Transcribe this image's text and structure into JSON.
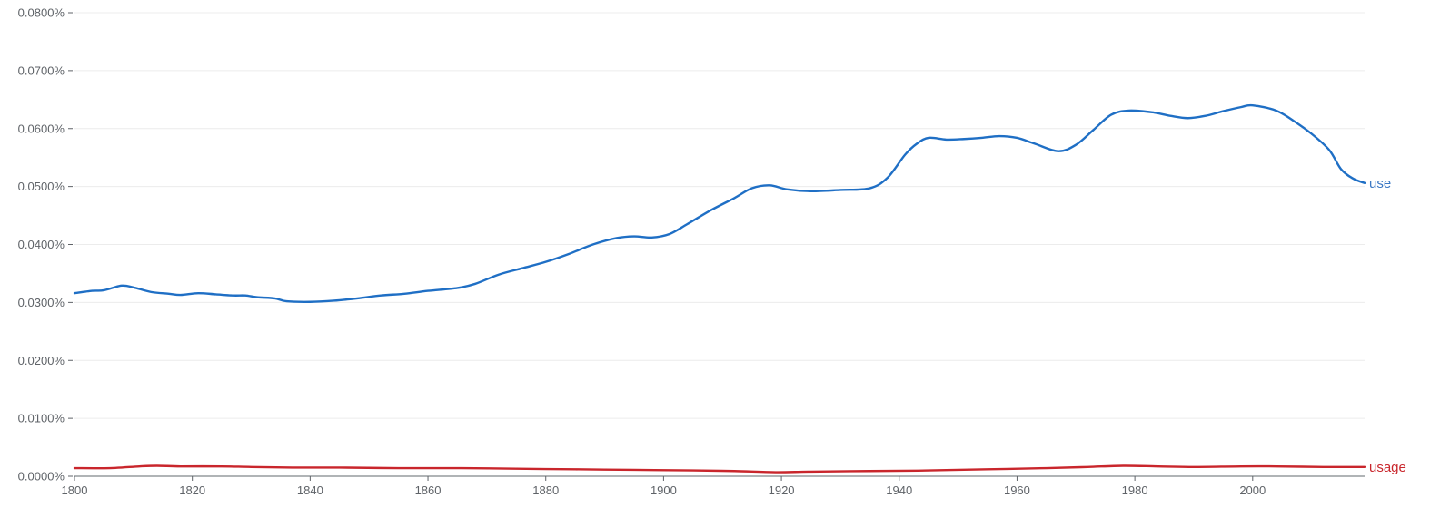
{
  "chart_data": {
    "type": "line",
    "title": "",
    "xlabel": "",
    "ylabel": "",
    "xlim": [
      1800,
      2019
    ],
    "ylim": [
      0,
      0.08
    ],
    "grid": true,
    "legend": "inline-right",
    "x_ticks": [
      1800,
      1820,
      1840,
      1860,
      1880,
      1900,
      1920,
      1940,
      1960,
      1980,
      2000
    ],
    "x_tick_labels": [
      "1800",
      "1820",
      "1840",
      "1860",
      "1880",
      "1900",
      "1920",
      "1940",
      "1960",
      "1980",
      "2000"
    ],
    "y_ticks": [
      0,
      0.01,
      0.02,
      0.03,
      0.04,
      0.05,
      0.06,
      0.07,
      0.08
    ],
    "y_tick_labels": [
      "0.0000%",
      "0.0100%",
      "0.0200%",
      "0.0300%",
      "0.0400%",
      "0.0500%",
      "0.0600%",
      "0.0700%",
      "0.0800%"
    ],
    "series": [
      {
        "name": "use",
        "color": "#1f6fc5",
        "label_color": "#3b78c4",
        "points": [
          [
            1800,
            0.0316
          ],
          [
            1803,
            0.032
          ],
          [
            1805,
            0.0321
          ],
          [
            1808,
            0.0329
          ],
          [
            1810,
            0.0326
          ],
          [
            1813,
            0.0318
          ],
          [
            1816,
            0.0315
          ],
          [
            1818,
            0.0313
          ],
          [
            1821,
            0.0316
          ],
          [
            1824,
            0.0314
          ],
          [
            1827,
            0.0312
          ],
          [
            1829,
            0.0312
          ],
          [
            1831,
            0.0309
          ],
          [
            1834,
            0.0307
          ],
          [
            1836,
            0.0302
          ],
          [
            1840,
            0.0301
          ],
          [
            1844,
            0.0303
          ],
          [
            1848,
            0.0307
          ],
          [
            1852,
            0.0312
          ],
          [
            1856,
            0.0315
          ],
          [
            1860,
            0.032
          ],
          [
            1865,
            0.0325
          ],
          [
            1868,
            0.0332
          ],
          [
            1872,
            0.0348
          ],
          [
            1876,
            0.0359
          ],
          [
            1880,
            0.037
          ],
          [
            1884,
            0.0384
          ],
          [
            1888,
            0.04
          ],
          [
            1892,
            0.0411
          ],
          [
            1895,
            0.0414
          ],
          [
            1898,
            0.0412
          ],
          [
            1901,
            0.0418
          ],
          [
            1904,
            0.0435
          ],
          [
            1908,
            0.0459
          ],
          [
            1912,
            0.048
          ],
          [
            1915,
            0.0497
          ],
          [
            1918,
            0.0502
          ],
          [
            1921,
            0.0495
          ],
          [
            1925,
            0.0492
          ],
          [
            1930,
            0.0494
          ],
          [
            1935,
            0.0497
          ],
          [
            1938,
            0.0515
          ],
          [
            1941,
            0.0555
          ],
          [
            1943,
            0.0574
          ],
          [
            1945,
            0.0584
          ],
          [
            1948,
            0.0581
          ],
          [
            1951,
            0.0582
          ],
          [
            1954,
            0.0584
          ],
          [
            1957,
            0.0587
          ],
          [
            1960,
            0.0584
          ],
          [
            1963,
            0.0574
          ],
          [
            1967,
            0.0561
          ],
          [
            1970,
            0.0572
          ],
          [
            1973,
            0.0598
          ],
          [
            1976,
            0.0624
          ],
          [
            1979,
            0.0631
          ],
          [
            1983,
            0.0628
          ],
          [
            1986,
            0.0622
          ],
          [
            1989,
            0.0618
          ],
          [
            1992,
            0.0622
          ],
          [
            1995,
            0.063
          ],
          [
            1998,
            0.0637
          ],
          [
            2000,
            0.064
          ],
          [
            2004,
            0.0631
          ],
          [
            2007,
            0.0613
          ],
          [
            2010,
            0.0591
          ],
          [
            2013,
            0.0563
          ],
          [
            2015,
            0.053
          ],
          [
            2017,
            0.0514
          ],
          [
            2019,
            0.0506
          ]
        ]
      },
      {
        "name": "usage",
        "color": "#c9262c",
        "label_color": "#c9262c",
        "points": [
          [
            1800,
            0.0014
          ],
          [
            1806,
            0.0014
          ],
          [
            1811,
            0.0017
          ],
          [
            1814,
            0.0018
          ],
          [
            1818,
            0.0017
          ],
          [
            1825,
            0.0017
          ],
          [
            1830,
            0.0016
          ],
          [
            1837,
            0.0015
          ],
          [
            1845,
            0.0015
          ],
          [
            1855,
            0.0014
          ],
          [
            1865,
            0.0014
          ],
          [
            1875,
            0.0013
          ],
          [
            1885,
            0.0012
          ],
          [
            1895,
            0.0011
          ],
          [
            1905,
            0.001
          ],
          [
            1912,
            0.0009
          ],
          [
            1919,
            0.0007
          ],
          [
            1925,
            0.0008
          ],
          [
            1935,
            0.0009
          ],
          [
            1945,
            0.001
          ],
          [
            1955,
            0.0012
          ],
          [
            1965,
            0.0014
          ],
          [
            1972,
            0.0016
          ],
          [
            1978,
            0.0018
          ],
          [
            1984,
            0.0017
          ],
          [
            1990,
            0.0016
          ],
          [
            1998,
            0.0017
          ],
          [
            2004,
            0.0017
          ],
          [
            2012,
            0.0016
          ],
          [
            2019,
            0.0016
          ]
        ]
      }
    ]
  }
}
